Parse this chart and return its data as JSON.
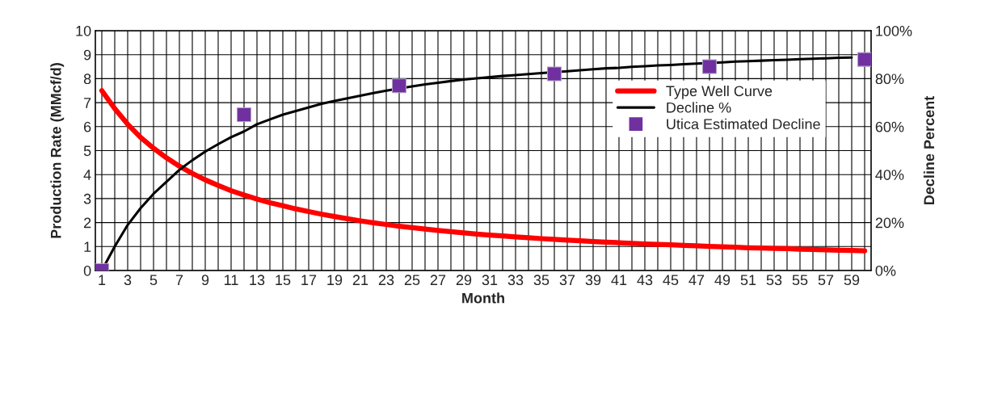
{
  "chart_data": {
    "type": "line",
    "xlabel": "Month",
    "ylabel": "Production Rate (MMcf/d)",
    "y2label": "Decline Percent",
    "categories": [
      "1",
      null,
      "3",
      null,
      "5",
      null,
      "7",
      null,
      "9",
      null,
      "11",
      null,
      "13",
      null,
      "15",
      null,
      "17",
      null,
      "19",
      null,
      "21",
      null,
      "23",
      null,
      "25",
      null,
      "27",
      null,
      "29",
      null,
      "31",
      null,
      "33",
      null,
      "35",
      null,
      "37",
      null,
      "39",
      null,
      "41",
      null,
      "43",
      null,
      "45",
      null,
      "47",
      null,
      "49",
      null,
      "51",
      null,
      "53",
      null,
      "55",
      null,
      "57",
      null,
      "59",
      null
    ],
    "series": [
      {
        "name": "Type Well Curve",
        "color": "#ff0000",
        "values": [
          7.5,
          6.75,
          6.1,
          5.55,
          5.1,
          4.7,
          4.35,
          4.05,
          3.78,
          3.55,
          3.33,
          3.15,
          2.98,
          2.83,
          2.7,
          2.57,
          2.46,
          2.35,
          2.25,
          2.16,
          2.07,
          1.99,
          1.92,
          1.85,
          1.79,
          1.73,
          1.67,
          1.62,
          1.57,
          1.52,
          1.48,
          1.44,
          1.4,
          1.37,
          1.33,
          1.3,
          1.27,
          1.24,
          1.21,
          1.18,
          1.16,
          1.13,
          1.11,
          1.09,
          1.07,
          1.05,
          1.03,
          1.01,
          0.99,
          0.97,
          0.95,
          0.94,
          0.92,
          0.91,
          0.89,
          0.88,
          0.86,
          0.85,
          0.84,
          0.82
        ]
      },
      {
        "name": "Decline %",
        "color": "#000000",
        "axis": "y2",
        "values": [
          0,
          10,
          19,
          26,
          32,
          37,
          42,
          46,
          49.6,
          52.7,
          55.6,
          58,
          61,
          63,
          65,
          66.5,
          68,
          69.5,
          70.7,
          71.8,
          72.9,
          74,
          75,
          null,
          76.8,
          77.6,
          78.3,
          79,
          79.6,
          80.1,
          80.6,
          81.1,
          81.5,
          81.9,
          82.3,
          null,
          83.1,
          83.5,
          83.9,
          84.3,
          84.5,
          84.9,
          85.2,
          85.5,
          85.7,
          86,
          86.3,
          null,
          86.8,
          87.1,
          87.3,
          87.5,
          87.7,
          87.9,
          88.1,
          88.3,
          88.5,
          88.7,
          88.8,
          null
        ]
      },
      {
        "name": "Utica Estimated Decline",
        "type": "scatter",
        "color": "#7030a0",
        "axis": "y2",
        "marker": "square",
        "values": [
          0,
          null,
          null,
          null,
          null,
          null,
          null,
          null,
          null,
          null,
          null,
          65,
          null,
          null,
          null,
          null,
          null,
          null,
          null,
          null,
          null,
          null,
          null,
          77,
          null,
          null,
          null,
          null,
          null,
          null,
          null,
          null,
          null,
          null,
          null,
          82,
          null,
          null,
          null,
          null,
          null,
          null,
          null,
          null,
          null,
          null,
          null,
          85,
          null,
          null,
          null,
          null,
          null,
          null,
          null,
          null,
          null,
          null,
          null,
          88
        ]
      }
    ],
    "ylim": [
      0,
      10
    ],
    "yticks": [
      0,
      1,
      2,
      3,
      4,
      5,
      6,
      7,
      8,
      9,
      10
    ],
    "y2lim": [
      0,
      100
    ],
    "y2ticks": [
      {
        "value": 0,
        "label": "0%"
      },
      {
        "value": 20,
        "label": "20%"
      },
      {
        "value": 40,
        "label": "40%"
      },
      {
        "value": 60,
        "label": "60%"
      },
      {
        "value": 80,
        "label": "80%"
      },
      {
        "value": 100,
        "label": "100%"
      }
    ],
    "grid": true,
    "legend": "top right"
  }
}
